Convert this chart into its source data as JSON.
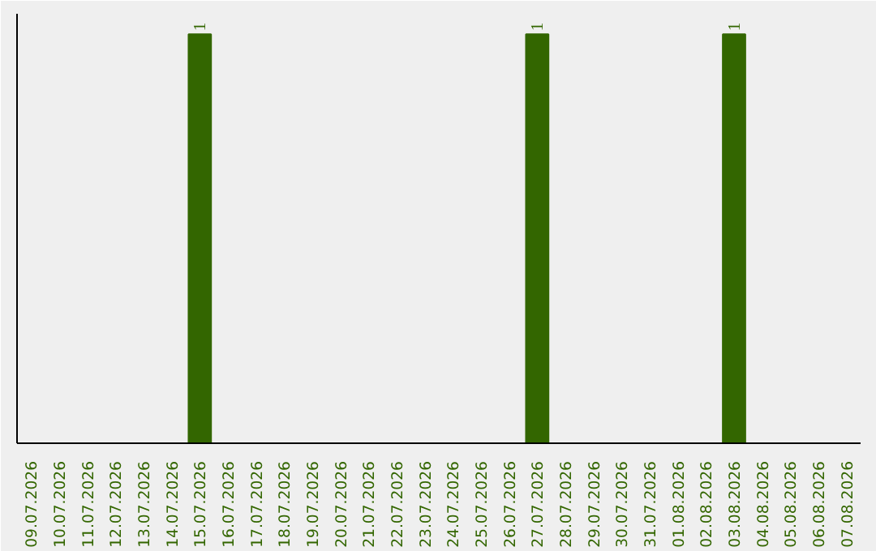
{
  "chart_data": {
    "type": "bar",
    "categories": [
      "09.07.2026",
      "10.07.2026",
      "11.07.2026",
      "12.07.2026",
      "13.07.2026",
      "14.07.2026",
      "15.07.2026",
      "16.07.2026",
      "17.07.2026",
      "18.07.2026",
      "19.07.2026",
      "20.07.2026",
      "21.07.2026",
      "22.07.2026",
      "23.07.2026",
      "24.07.2026",
      "25.07.2026",
      "26.07.2026",
      "27.07.2026",
      "28.07.2026",
      "29.07.2026",
      "30.07.2026",
      "31.07.2026",
      "01.08.2026",
      "02.08.2026",
      "03.08.2026",
      "04.08.2026",
      "05.08.2026",
      "06.08.2026",
      "07.08.2026"
    ],
    "values": [
      0,
      0,
      0,
      0,
      0,
      0,
      1,
      0,
      0,
      0,
      0,
      0,
      0,
      0,
      0,
      0,
      0,
      0,
      1,
      0,
      0,
      0,
      0,
      0,
      0,
      1,
      0,
      0,
      0,
      0
    ],
    "value_labels": [
      null,
      null,
      null,
      null,
      null,
      null,
      "1",
      null,
      null,
      null,
      null,
      null,
      null,
      null,
      null,
      null,
      null,
      null,
      "1",
      null,
      null,
      null,
      null,
      null,
      null,
      "1",
      null,
      null,
      null,
      null
    ],
    "color": "#336600",
    "grid": false
  }
}
